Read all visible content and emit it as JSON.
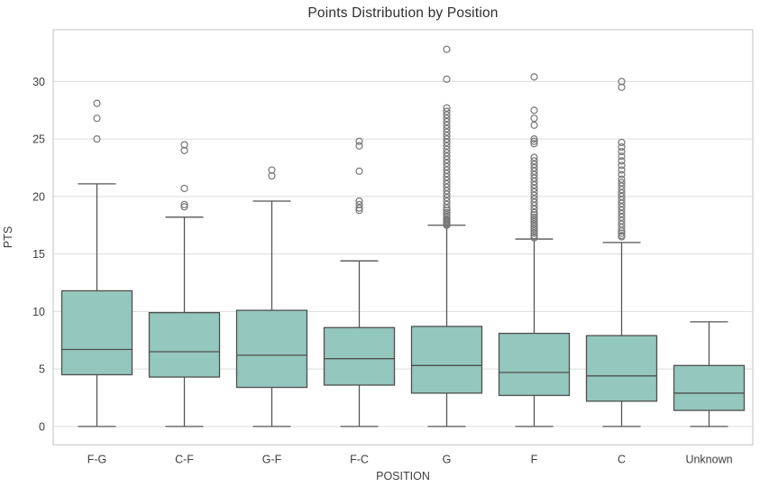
{
  "chart_data": {
    "type": "boxplot",
    "title": "Points Distribution by Position",
    "xlabel": "POSITION",
    "ylabel": "PTS",
    "categories": [
      "F-G",
      "C-F",
      "G-F",
      "F-C",
      "G",
      "F",
      "C",
      "Unknown"
    ],
    "yticks": [
      0,
      5,
      10,
      15,
      20,
      25,
      30
    ],
    "ylim": [
      -1.6,
      34.5
    ],
    "grid": "horizontal-only",
    "legend": "none",
    "colors": {
      "box_fill": "#94c7bd",
      "box_edge": "#4f4f4f",
      "whisker": "#555555",
      "outlier_edge": "#767676",
      "gridline": "#dcdcdc",
      "frame": "#cccccc",
      "title_text": "#2e2e2e",
      "tick_text": "#3d3d3d"
    },
    "boxes": [
      {
        "category": "F-G",
        "whislo": 0,
        "q1": 4.5,
        "med": 6.7,
        "q3": 11.8,
        "whishi": 21.1,
        "outliers": [
          25.0,
          26.8,
          28.1
        ]
      },
      {
        "category": "C-F",
        "whislo": 0,
        "q1": 4.3,
        "med": 6.5,
        "q3": 9.9,
        "whishi": 18.2,
        "outliers": [
          19.1,
          19.3,
          20.7,
          24.0,
          24.5
        ]
      },
      {
        "category": "G-F",
        "whislo": 0,
        "q1": 3.4,
        "med": 6.2,
        "q3": 10.1,
        "whishi": 19.6,
        "outliers": [
          21.8,
          22.3
        ]
      },
      {
        "category": "F-C",
        "whislo": 0,
        "q1": 3.6,
        "med": 5.9,
        "q3": 8.6,
        "whishi": 14.4,
        "outliers": [
          18.8,
          19.0,
          19.3,
          19.6,
          22.2,
          24.4,
          24.8
        ]
      },
      {
        "category": "G",
        "whislo": 0,
        "q1": 2.9,
        "med": 5.3,
        "q3": 8.7,
        "whishi": 17.5,
        "outliers": [
          17.5,
          17.6,
          17.7,
          17.8,
          17.9,
          18.0,
          18.2,
          18.4,
          18.6,
          18.8,
          19.0,
          19.3,
          19.6,
          19.9,
          20.2,
          20.5,
          20.8,
          21.1,
          21.4,
          21.7,
          22.0,
          22.3,
          22.6,
          22.9,
          23.2,
          23.5,
          23.8,
          24.1,
          24.4,
          24.7,
          25.0,
          25.3,
          25.6,
          25.9,
          26.2,
          26.5,
          26.8,
          27.1,
          27.4,
          27.7,
          30.2,
          32.8
        ]
      },
      {
        "category": "F",
        "whislo": 0,
        "q1": 2.7,
        "med": 4.7,
        "q3": 8.1,
        "whishi": 16.3,
        "outliers": [
          16.4,
          16.6,
          16.8,
          17.0,
          17.2,
          17.4,
          17.6,
          17.8,
          18.0,
          18.2,
          18.4,
          18.6,
          18.9,
          19.2,
          19.5,
          19.8,
          20.1,
          20.4,
          20.7,
          21.0,
          21.3,
          21.6,
          21.9,
          22.2,
          22.5,
          22.8,
          23.1,
          23.4,
          24.6,
          24.8,
          25.0,
          26.2,
          26.8,
          27.5,
          30.4
        ]
      },
      {
        "category": "C",
        "whislo": 0,
        "q1": 2.2,
        "med": 4.4,
        "q3": 7.9,
        "whishi": 16.0,
        "outliers": [
          16.5,
          16.6,
          16.8,
          17.0,
          17.3,
          17.6,
          17.9,
          18.2,
          18.5,
          18.8,
          19.1,
          19.4,
          19.7,
          20.0,
          20.3,
          20.6,
          20.9,
          21.2,
          21.5,
          21.9,
          22.3,
          22.7,
          23.1,
          23.5,
          23.9,
          24.3,
          24.7,
          29.5,
          30.0
        ]
      },
      {
        "category": "Unknown",
        "whislo": 0,
        "q1": 1.4,
        "med": 2.9,
        "q3": 5.3,
        "whishi": 9.1,
        "outliers": []
      }
    ]
  }
}
